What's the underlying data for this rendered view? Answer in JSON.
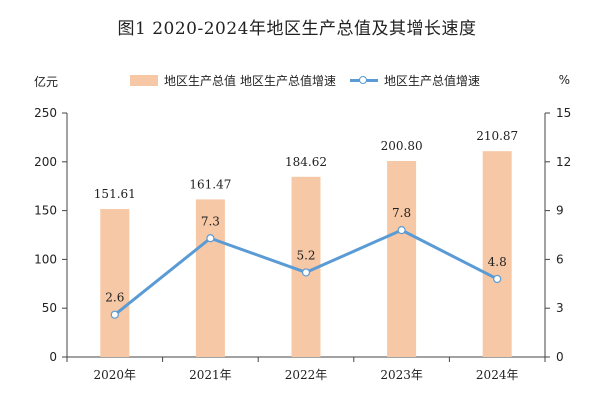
{
  "title": "图1   2020-2024年地区生产总值及其增长速度",
  "units": {
    "left": "亿元",
    "right": "%"
  },
  "legend": {
    "bar_label": "地区生产总值",
    "bar_label_extra": "地区生产总值增速",
    "line_label": "地区生产总值增速"
  },
  "colors": {
    "bar": "#F7C8A5",
    "line": "#5B9BD5",
    "axis": "#444444"
  },
  "chart_data": {
    "type": "bar",
    "categories": [
      "2020年",
      "2021年",
      "2022年",
      "2023年",
      "2024年"
    ],
    "series": [
      {
        "name": "地区生产总值",
        "type": "bar",
        "axis": "left",
        "values": [
          151.61,
          161.47,
          184.62,
          200.8,
          210.87
        ],
        "labels": [
          "151.61",
          "161.47",
          "184.62",
          "200.80",
          "210.87"
        ]
      },
      {
        "name": "地区生产总值增速",
        "type": "line",
        "axis": "right",
        "values": [
          2.6,
          7.3,
          5.2,
          7.8,
          4.8
        ],
        "labels": [
          "2.6",
          "7.3",
          "5.2",
          "7.8",
          "4.8"
        ]
      }
    ],
    "ylim_left": [
      0,
      250
    ],
    "yticks_left": [
      0,
      50,
      100,
      150,
      200,
      250
    ],
    "ylim_right": [
      0,
      15
    ],
    "yticks_right": [
      0,
      3,
      6,
      9,
      12,
      15
    ],
    "grid": false,
    "legend_position": "top"
  }
}
